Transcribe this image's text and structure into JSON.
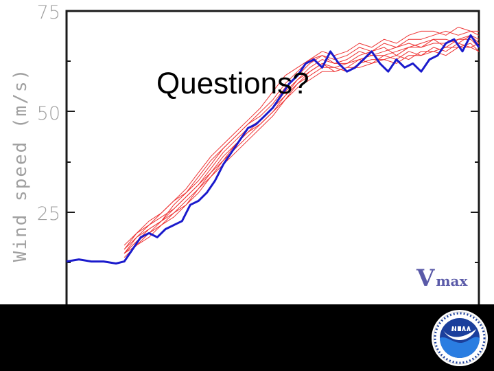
{
  "slide": {
    "title": "Questions?"
  },
  "chart_data": {
    "type": "line",
    "ylabel": "Wind speed (m/s)",
    "xlabel": "",
    "ylim": [
      0,
      75
    ],
    "yticks": [
      25,
      50,
      75
    ],
    "xlim": [
      0,
      100
    ],
    "annotation": {
      "main": "V",
      "sub": "max"
    },
    "series": [
      {
        "color": "#1a1acc",
        "x": [
          0,
          3,
          6,
          9,
          12,
          14,
          16,
          18,
          20,
          22,
          24,
          26,
          28,
          30,
          32,
          34,
          36,
          38,
          40,
          42,
          44,
          46,
          48,
          50,
          52,
          54,
          56,
          58,
          60,
          62,
          64,
          66,
          68,
          70,
          72,
          74,
          76,
          78,
          80,
          82,
          84,
          86,
          88,
          90,
          92,
          94,
          96,
          98,
          100
        ],
        "values": [
          13,
          13.5,
          13,
          13,
          12.5,
          13,
          16,
          19,
          20,
          19,
          21,
          22,
          23,
          27,
          28,
          30,
          33,
          37,
          40,
          43,
          46,
          47,
          49,
          51,
          54,
          57,
          59,
          62,
          63,
          61,
          65,
          62,
          60,
          61,
          63,
          65,
          62,
          60,
          63,
          61,
          62,
          60,
          63,
          64,
          67,
          68,
          65,
          69,
          66
        ]
      },
      {
        "color": "#ee3333",
        "x": [
          14,
          17,
          20,
          23,
          26,
          29,
          32,
          35,
          38,
          41,
          44,
          47,
          50,
          53,
          56,
          59,
          62,
          65,
          68,
          71,
          74,
          77,
          80,
          83,
          86,
          89,
          92,
          95,
          98,
          100
        ],
        "values": [
          15,
          18,
          20,
          22,
          24,
          27,
          30,
          34,
          37,
          40,
          43,
          46,
          49,
          53,
          57,
          60,
          62,
          60,
          61,
          63,
          62,
          64,
          63,
          65,
          64,
          66,
          65,
          67,
          66,
          67
        ]
      },
      {
        "color": "#ee3333",
        "x": [
          14,
          17,
          20,
          23,
          26,
          29,
          32,
          35,
          38,
          41,
          44,
          47,
          50,
          53,
          56,
          59,
          62,
          65,
          68,
          71,
          74,
          77,
          80,
          83,
          86,
          89,
          92,
          95,
          98,
          100
        ],
        "values": [
          16,
          19,
          22,
          24,
          26,
          29,
          32,
          36,
          40,
          43,
          46,
          48,
          51,
          55,
          58,
          61,
          63,
          62,
          62,
          64,
          65,
          66,
          64,
          66,
          67,
          68,
          66,
          68,
          69,
          68
        ]
      },
      {
        "color": "#ee3333",
        "x": [
          14,
          17,
          20,
          23,
          26,
          29,
          32,
          35,
          38,
          41,
          44,
          47,
          50,
          53,
          56,
          59,
          62,
          65,
          68,
          71,
          74,
          77,
          80,
          83,
          86,
          89,
          92,
          95,
          98,
          100
        ],
        "values": [
          15,
          18,
          21,
          23,
          27,
          30,
          33,
          37,
          41,
          44,
          47,
          50,
          53,
          57,
          60,
          63,
          64,
          63,
          64,
          66,
          65,
          67,
          66,
          68,
          68,
          69,
          70,
          69,
          70,
          69
        ]
      },
      {
        "color": "#ee3333",
        "x": [
          14,
          17,
          20,
          23,
          26,
          29,
          32,
          35,
          38,
          41,
          44,
          47,
          50,
          53,
          56,
          59,
          62,
          65,
          68,
          71,
          74,
          77,
          80,
          83,
          86,
          89,
          92,
          95,
          98,
          100
        ],
        "values": [
          14,
          17,
          19,
          22,
          25,
          27,
          31,
          34,
          38,
          41,
          44,
          47,
          50,
          54,
          57,
          59,
          61,
          61,
          60,
          62,
          63,
          63,
          64,
          63,
          65,
          65,
          66,
          66,
          67,
          65
        ]
      },
      {
        "color": "#ee3333",
        "x": [
          14,
          17,
          20,
          23,
          26,
          29,
          32,
          35,
          38,
          41,
          44,
          47,
          50,
          53,
          56,
          59,
          62,
          65,
          68,
          71,
          74,
          77,
          80,
          83,
          86,
          89,
          92,
          95,
          98,
          100
        ],
        "values": [
          16,
          20,
          22,
          25,
          28,
          31,
          35,
          39,
          42,
          45,
          48,
          51,
          55,
          59,
          61,
          63,
          65,
          64,
          65,
          67,
          66,
          68,
          67,
          69,
          70,
          70,
          69,
          71,
          70,
          70
        ]
      },
      {
        "color": "#ee3333",
        "x": [
          14,
          17,
          20,
          23,
          26,
          29,
          32,
          35,
          38,
          41,
          44,
          47,
          50,
          53,
          56,
          59,
          62,
          65,
          68,
          71,
          74,
          77,
          80,
          83,
          86,
          89,
          92,
          95,
          98,
          100
        ],
        "values": [
          15,
          19,
          21,
          23,
          26,
          29,
          32,
          35,
          39,
          42,
          45,
          47,
          50,
          53,
          56,
          58,
          60,
          60,
          61,
          61,
          62,
          63,
          62,
          64,
          64,
          65,
          64,
          66,
          66,
          65
        ]
      },
      {
        "color": "#ee3333",
        "x": [
          14,
          17,
          20,
          23,
          26,
          29,
          32,
          35,
          38,
          41,
          44,
          47,
          50,
          53,
          56,
          59,
          62,
          65,
          68,
          71,
          74,
          77,
          80,
          83,
          86,
          89,
          92,
          95,
          98,
          100
        ],
        "values": [
          17,
          20,
          23,
          25,
          28,
          30,
          34,
          38,
          41,
          44,
          47,
          49,
          52,
          56,
          59,
          62,
          64,
          62,
          63,
          65,
          64,
          65,
          66,
          67,
          66,
          68,
          68,
          67,
          69,
          67
        ]
      },
      {
        "color": "#ee3333",
        "x": [
          14,
          17,
          20,
          23,
          26,
          29,
          32,
          35,
          38,
          41,
          44,
          47,
          50,
          53,
          56,
          59,
          62,
          65,
          68,
          71,
          74,
          77,
          80,
          83,
          86,
          89,
          92,
          95,
          98,
          100
        ],
        "values": [
          15,
          17,
          20,
          23,
          25,
          28,
          31,
          35,
          38,
          42,
          45,
          48,
          51,
          54,
          58,
          60,
          62,
          61,
          62,
          63,
          64,
          64,
          65,
          66,
          66,
          67,
          67,
          68,
          68,
          66
        ]
      }
    ]
  }
}
